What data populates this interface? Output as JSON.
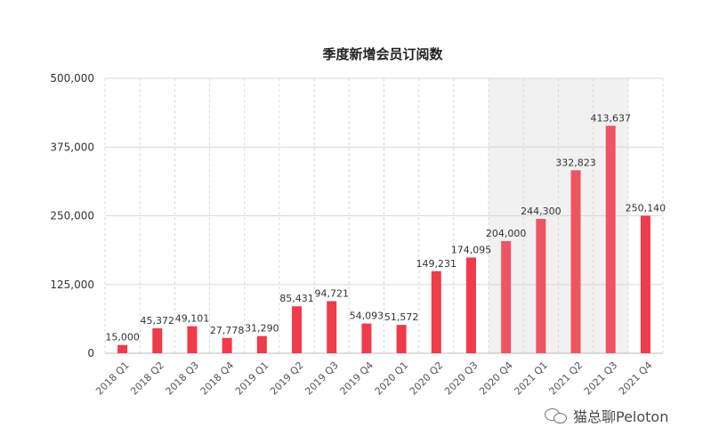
{
  "chart_data": {
    "type": "bar",
    "title": "季度新增会员订阅数",
    "categories": [
      "2018 Q1",
      "2018 Q2",
      "2018 Q3",
      "2018 Q4",
      "2019 Q1",
      "2019 Q2",
      "2019 Q3",
      "2019 Q4",
      "2020 Q1",
      "2020 Q2",
      "2020 Q3",
      "2020 Q4",
      "2021 Q1",
      "2021 Q2",
      "2021 Q3",
      "2021 Q4"
    ],
    "values": [
      15000,
      45372,
      49101,
      27778,
      31290,
      85431,
      94721,
      54093,
      51572,
      149231,
      174095,
      204000,
      244300,
      332823,
      413637,
      250140
    ],
    "data_labels": [
      "15,000",
      "45,372",
      "49,101",
      "27,778",
      "31,290",
      "85,431",
      "94,721",
      "54,093",
      "51,572",
      "149,231",
      "174,095",
      "204,000",
      "244,300",
      "332,823",
      "413,637",
      "250,140"
    ],
    "yticks": [
      "0",
      "125,000",
      "250,000",
      "375,000",
      "500,000"
    ],
    "ylim": [
      0,
      500000
    ],
    "xlabel": "",
    "ylabel": "",
    "grid": "horizontal solid, vertical dashed",
    "highlight_range": [
      "2020 Q4",
      "2021 Q3"
    ],
    "colors": {
      "bar": "#ef3b4a",
      "bar_highlight": "#ee5562",
      "highlight_band": "#f1f1f1",
      "grid": "#d8d8d8"
    }
  },
  "watermark": {
    "icon": "wechat-icon",
    "text": "猫总聊Peloton"
  }
}
